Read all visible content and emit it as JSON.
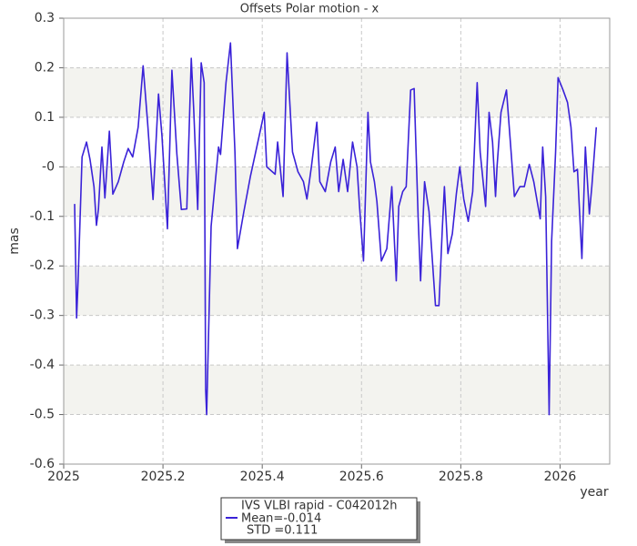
{
  "chart_data": {
    "type": "line",
    "title": "Offsets Polar motion - x",
    "x_label": "year",
    "y_label": "mas",
    "xlim": [
      2025,
      2026.1
    ],
    "ylim": [
      -0.6,
      0.3
    ],
    "xticks": [
      2025,
      2025.2,
      2025.4,
      2025.6,
      2025.8,
      2026
    ],
    "yticks": [
      0.3,
      0.2,
      0.1,
      {
        "value": 0,
        "label": "-0"
      },
      -0.1,
      -0.2,
      -0.3,
      -0.4,
      -0.5,
      -0.6
    ],
    "grid": true,
    "band_color": "#f3f3ef",
    "legend": "bottom",
    "annotations": [
      "Mean=-0.014",
      "STD =0.111"
    ],
    "series": [
      {
        "name": "IVS VLBI rapid - C042012h",
        "color": "#3a22d8",
        "x": [
          2025.022,
          2025.026,
          2025.029,
          2025.037,
          2025.046,
          2025.053,
          2025.061,
          2025.066,
          2025.07,
          2025.077,
          2025.083,
          2025.092,
          2025.099,
          2025.11,
          2025.121,
          2025.13,
          2025.139,
          2025.15,
          2025.16,
          2025.169,
          2025.18,
          2025.191,
          2025.198,
          2025.209,
          2025.218,
          2025.228,
          2025.237,
          2025.248,
          2025.257,
          2025.262,
          2025.27,
          2025.277,
          2025.283,
          2025.286,
          2025.288,
          2025.297,
          2025.312,
          2025.316,
          2025.327,
          2025.336,
          2025.345,
          2025.35,
          2025.363,
          2025.376,
          2025.389,
          2025.404,
          2025.409,
          2025.426,
          2025.431,
          2025.442,
          2025.45,
          2025.461,
          2025.472,
          2025.483,
          2025.49,
          2025.499,
          2025.51,
          2025.516,
          2025.527,
          2025.538,
          2025.547,
          2025.554,
          2025.563,
          2025.572,
          2025.582,
          2025.591,
          2025.596,
          2025.604,
          2025.613,
          2025.618,
          2025.626,
          2025.631,
          2025.64,
          2025.651,
          2025.661,
          2025.67,
          2025.675,
          2025.683,
          2025.69,
          2025.699,
          2025.706,
          2025.714,
          2025.719,
          2025.727,
          2025.736,
          2025.749,
          2025.756,
          2025.763,
          2025.767,
          2025.774,
          2025.783,
          2025.791,
          2025.798,
          2025.806,
          2025.815,
          2025.824,
          2025.833,
          2025.839,
          2025.85,
          2025.857,
          2025.864,
          2025.87,
          2025.873,
          2025.881,
          2025.892,
          2025.901,
          2025.908,
          2025.919,
          2025.928,
          2025.938,
          2025.947,
          2025.96,
          2025.965,
          2025.971,
          2025.978,
          2025.983,
          2025.991,
          2025.996,
          2026.006,
          2026.015,
          2026.022,
          2026.028,
          2026.035,
          2026.044,
          2026.051,
          2026.059,
          2026.064,
          2026.073
        ],
        "values": [
          -0.075,
          -0.305,
          -0.23,
          0.02,
          0.05,
          0.015,
          -0.04,
          -0.118,
          -0.085,
          0.04,
          -0.063,
          0.072,
          -0.055,
          -0.03,
          0.01,
          0.037,
          0.02,
          0.08,
          0.204,
          0.09,
          -0.066,
          0.147,
          0.062,
          -0.125,
          0.195,
          0.026,
          -0.086,
          -0.085,
          0.219,
          0.114,
          -0.086,
          0.21,
          0.17,
          -0.45,
          -0.5,
          -0.12,
          0.04,
          0.025,
          0.17,
          0.25,
          0.03,
          -0.165,
          -0.09,
          -0.02,
          0.04,
          0.11,
          0.0,
          -0.015,
          0.05,
          -0.06,
          0.23,
          0.03,
          -0.01,
          -0.03,
          -0.065,
          0.0,
          0.09,
          -0.03,
          -0.05,
          0.01,
          0.04,
          -0.05,
          0.015,
          -0.05,
          0.05,
          0.0,
          -0.08,
          -0.19,
          0.11,
          0.01,
          -0.03,
          -0.07,
          -0.19,
          -0.165,
          -0.04,
          -0.23,
          -0.08,
          -0.05,
          -0.04,
          0.155,
          0.158,
          -0.1,
          -0.23,
          -0.03,
          -0.09,
          -0.28,
          -0.28,
          -0.12,
          -0.04,
          -0.175,
          -0.135,
          -0.055,
          0.0,
          -0.065,
          -0.11,
          -0.05,
          0.17,
          0.03,
          -0.08,
          0.11,
          0.05,
          -0.06,
          0.0,
          0.11,
          0.155,
          0.035,
          -0.06,
          -0.04,
          -0.04,
          0.005,
          -0.03,
          -0.105,
          0.04,
          -0.06,
          -0.5,
          -0.15,
          0.03,
          0.18,
          0.155,
          0.13,
          0.08,
          -0.01,
          -0.005,
          -0.185,
          0.04,
          -0.095,
          -0.04,
          0.08
        ]
      }
    ]
  }
}
